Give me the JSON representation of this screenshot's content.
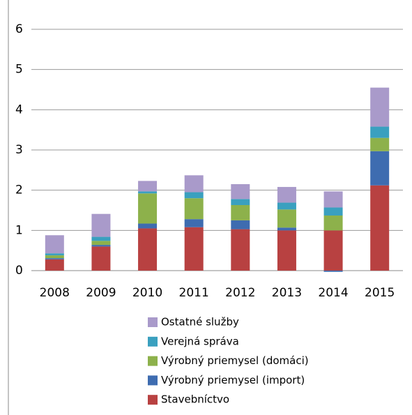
{
  "chart_data": {
    "type": "stacked_bar",
    "categories": [
      "2008",
      "2009",
      "2010",
      "2011",
      "2012",
      "2013",
      "2014",
      "2015"
    ],
    "series": [
      {
        "name": "Stavebníctvo",
        "color": "#b84141",
        "values": [
          0.28,
          0.6,
          1.05,
          1.08,
          1.03,
          1.0,
          1.0,
          2.12
        ]
      },
      {
        "name": "Výrobný priemysel (import)",
        "color": "#3e6cb0",
        "values": [
          0.03,
          0.04,
          0.12,
          0.2,
          0.22,
          0.07,
          -0.03,
          0.85
        ]
      },
      {
        "name": "Výrobný priemysel (domáci)",
        "color": "#8db14b",
        "values": [
          0.07,
          0.1,
          0.75,
          0.52,
          0.38,
          0.45,
          0.37,
          0.33
        ]
      },
      {
        "name": "Verejná správa",
        "color": "#3aa0bf",
        "values": [
          0.05,
          0.1,
          0.05,
          0.15,
          0.15,
          0.17,
          0.2,
          0.28
        ]
      },
      {
        "name": "Ostatné služby",
        "color": "#a99aca",
        "values": [
          0.45,
          0.57,
          0.26,
          0.42,
          0.37,
          0.39,
          0.4,
          0.97
        ]
      }
    ],
    "ylim": [
      0,
      6
    ],
    "yticks": [
      0,
      1,
      2,
      3,
      4,
      5,
      6
    ],
    "grid": true
  }
}
